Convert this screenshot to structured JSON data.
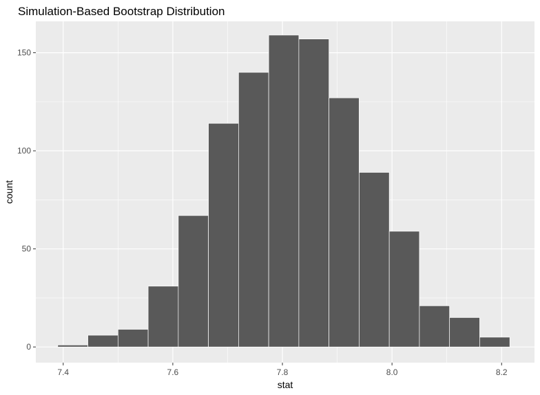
{
  "chart_data": {
    "type": "bar",
    "title": "Simulation-Based Bootstrap Distribution",
    "xlabel": "stat",
    "ylabel": "count",
    "xlim": [
      7.35,
      8.26
    ],
    "ylim": [
      -8,
      166
    ],
    "x_ticks": [
      7.4,
      7.6,
      7.8,
      8.0,
      8.2
    ],
    "x_tick_labels": [
      "7.4",
      "7.6",
      "7.8",
      "8.0",
      "8.2"
    ],
    "y_ticks": [
      0,
      50,
      100,
      150
    ],
    "y_tick_labels": [
      "0",
      "50",
      "100",
      "150"
    ],
    "grid": true,
    "bins": [
      {
        "x0": 7.39,
        "x1": 7.445,
        "count": 1
      },
      {
        "x0": 7.445,
        "x1": 7.5,
        "count": 6
      },
      {
        "x0": 7.5,
        "x1": 7.555,
        "count": 9
      },
      {
        "x0": 7.555,
        "x1": 7.61,
        "count": 31
      },
      {
        "x0": 7.61,
        "x1": 7.665,
        "count": 67
      },
      {
        "x0": 7.665,
        "x1": 7.72,
        "count": 114
      },
      {
        "x0": 7.72,
        "x1": 7.775,
        "count": 140
      },
      {
        "x0": 7.775,
        "x1": 7.83,
        "count": 159
      },
      {
        "x0": 7.83,
        "x1": 7.885,
        "count": 157
      },
      {
        "x0": 7.885,
        "x1": 7.94,
        "count": 127
      },
      {
        "x0": 7.94,
        "x1": 7.995,
        "count": 89
      },
      {
        "x0": 7.995,
        "x1": 8.05,
        "count": 59
      },
      {
        "x0": 8.05,
        "x1": 8.105,
        "count": 21
      },
      {
        "x0": 8.105,
        "x1": 8.16,
        "count": 15
      },
      {
        "x0": 8.16,
        "x1": 8.215,
        "count": 5
      }
    ]
  },
  "colors": {
    "panel_background": "#EBEBEB",
    "grid_major": "#FFFFFF",
    "bar_fill": "#595959",
    "bar_outline": "#FFFFFF",
    "tick_mark": "#333333",
    "tick_label": "#4D4D4D"
  }
}
